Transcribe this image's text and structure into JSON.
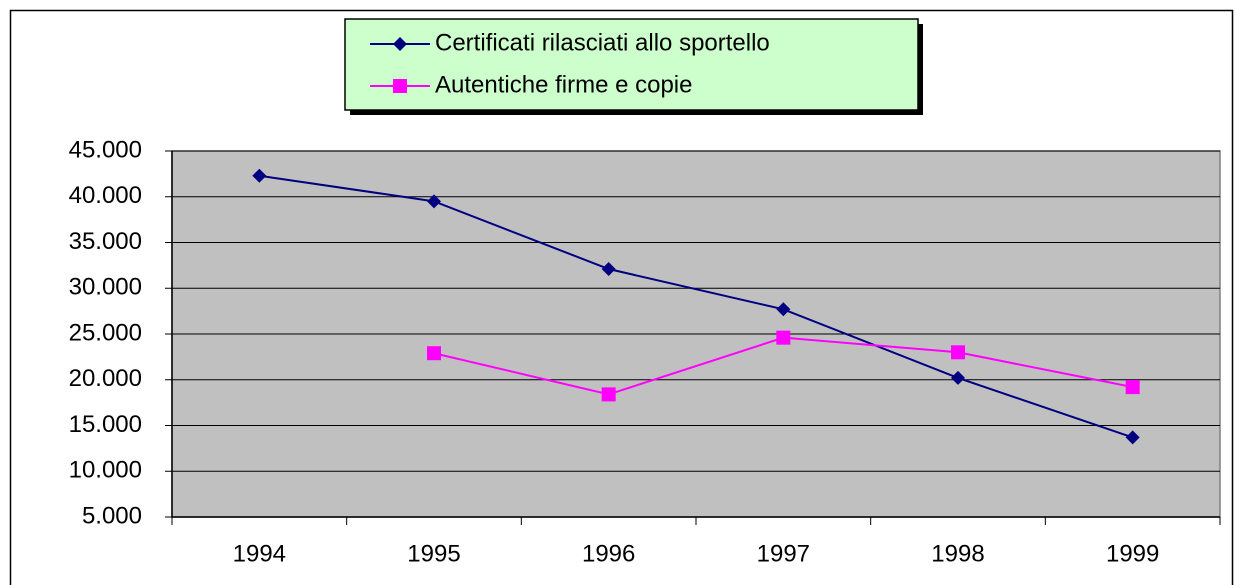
{
  "chart_data": {
    "type": "line",
    "categories": [
      "1994",
      "1995",
      "1996",
      "1997",
      "1998",
      "1999"
    ],
    "series": [
      {
        "name": "Certificati rilasciati allo sportello",
        "color": "#000080",
        "marker": "diamond",
        "values": [
          42300,
          39500,
          32100,
          27700,
          20200,
          13700
        ]
      },
      {
        "name": "Autentiche firme e copie",
        "color": "#ff00ff",
        "marker": "square",
        "values": [
          null,
          22900,
          18400,
          24600,
          23000,
          19200
        ]
      }
    ],
    "ylim": [
      5000,
      45000
    ],
    "yticks": [
      {
        "value": 5000,
        "label": "5.000"
      },
      {
        "value": 10000,
        "label": "10.000"
      },
      {
        "value": 15000,
        "label": "15.000"
      },
      {
        "value": 20000,
        "label": "20.000"
      },
      {
        "value": 25000,
        "label": "25.000"
      },
      {
        "value": 30000,
        "label": "30.000"
      },
      {
        "value": 35000,
        "label": "35.000"
      },
      {
        "value": 40000,
        "label": "40.000"
      },
      {
        "value": 45000,
        "label": "45.000"
      }
    ],
    "grid": true,
    "legend": "top"
  }
}
